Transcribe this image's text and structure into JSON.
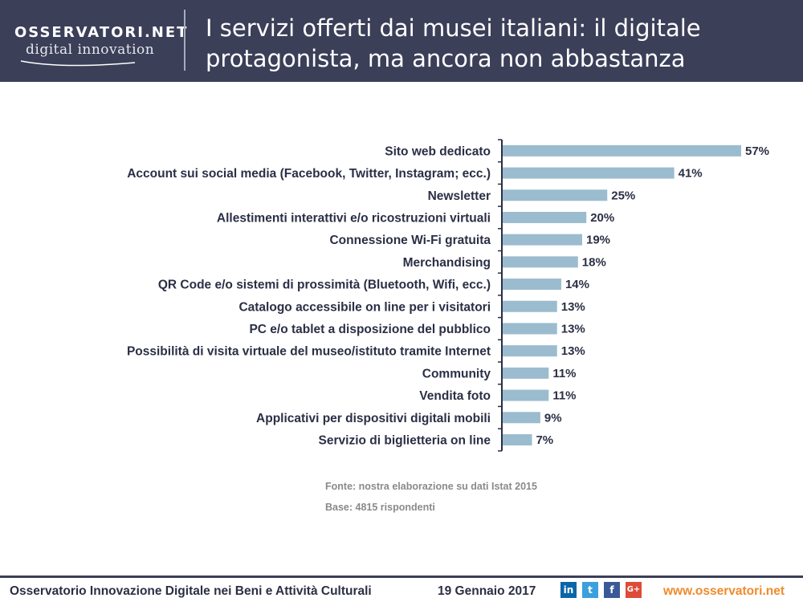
{
  "header": {
    "logo_top": "OSSERVATORI.NET",
    "logo_bottom": "digital innovation",
    "title": "I servizi offerti dai musei italiani: il digitale protagonista, ma ancora non abbastanza",
    "background": "#3b3f58"
  },
  "chart_data": {
    "type": "bar",
    "orientation": "horizontal",
    "title": "I servizi offerti dai musei italiani: il digitale protagonista, ma ancora non abbastanza",
    "xlabel": "",
    "ylabel": "",
    "xlim": [
      0,
      57
    ],
    "grid": false,
    "bar_color": "#9bbccf",
    "categories": [
      "Sito web dedicato",
      "Account sui social media (Facebook, Twitter, Instagram; ecc.)",
      "Newsletter",
      "Allestimenti interattivi e/o ricostruzioni virtuali",
      "Connessione Wi-Fi gratuita",
      "Merchandising",
      "QR Code e/o sistemi di prossimità (Bluetooth, Wifi, ecc.)",
      "Catalogo accessibile on line per i visitatori",
      "PC e/o tablet a disposizione del pubblico",
      "Possibilità di visita virtuale del museo/istituto tramite Internet",
      "Community",
      "Vendita foto",
      "Applicativi per dispositivi digitali mobili",
      "Servizio di biglietteria on line"
    ],
    "values": [
      57,
      41,
      25,
      20,
      19,
      18,
      14,
      13,
      13,
      13,
      11,
      11,
      9,
      7
    ],
    "labels": [
      "57%",
      "41%",
      "25%",
      "20%",
      "19%",
      "18%",
      "14%",
      "13%",
      "13%",
      "13%",
      "11%",
      "11%",
      "9%",
      "7%"
    ]
  },
  "notes": {
    "source": "Fonte: nostra elaborazione su dati Istat 2015",
    "base": "Base: 4815 rispondenti"
  },
  "footer": {
    "title": "Osservatorio Innovazione Digitale nei Beni e Attività Culturali",
    "date": "19 Gennaio 2017",
    "social": {
      "linkedin": "in",
      "twitter": "t",
      "facebook": "f",
      "googleplus": "G+"
    },
    "website": "www.osservatori.net"
  }
}
